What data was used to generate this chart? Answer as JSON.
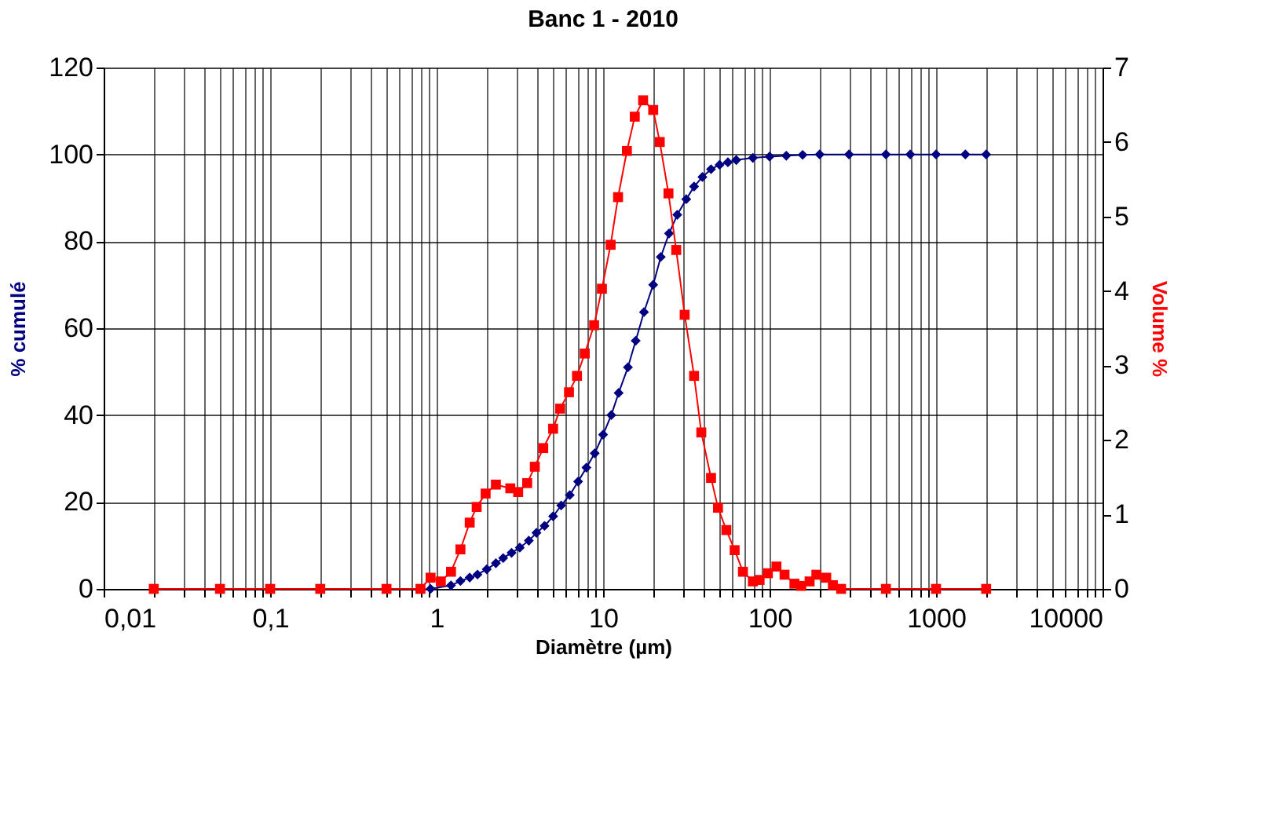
{
  "chart_data": {
    "type": "line",
    "title": "Banc 1 - 2010",
    "xlabel": "Diamètre (µm)",
    "ylabel": "% cumulé",
    "y2label": "Volume %",
    "log": "x",
    "grid": true,
    "xlim": [
      0.01,
      10000
    ],
    "xticks": [
      {
        "value": 0.01,
        "label": "0,01"
      },
      {
        "value": 0.02,
        "label": null
      },
      {
        "value": 0.03,
        "label": null
      },
      {
        "value": 0.04,
        "label": null
      },
      {
        "value": 0.05,
        "label": null
      },
      {
        "value": 0.06,
        "label": null
      },
      {
        "value": 0.07,
        "label": null
      },
      {
        "value": 0.08,
        "label": null
      },
      {
        "value": 0.09,
        "label": null
      },
      {
        "value": 0.1,
        "label": "0,1"
      },
      {
        "value": 0.2,
        "label": null
      },
      {
        "value": 0.3,
        "label": null
      },
      {
        "value": 0.4,
        "label": null
      },
      {
        "value": 0.5,
        "label": null
      },
      {
        "value": 0.6,
        "label": null
      },
      {
        "value": 0.7,
        "label": null
      },
      {
        "value": 0.8,
        "label": null
      },
      {
        "value": 0.9,
        "label": null
      },
      1,
      {
        "value": 2,
        "label": null
      },
      {
        "value": 3,
        "label": null
      },
      {
        "value": 4,
        "label": null
      },
      {
        "value": 5,
        "label": null
      },
      {
        "value": 6,
        "label": null
      },
      {
        "value": 7,
        "label": null
      },
      {
        "value": 8,
        "label": null
      },
      {
        "value": 9,
        "label": null
      },
      10,
      {
        "value": 20,
        "label": null
      },
      {
        "value": 30,
        "label": null
      },
      {
        "value": 40,
        "label": null
      },
      {
        "value": 50,
        "label": null
      },
      {
        "value": 60,
        "label": null
      },
      {
        "value": 70,
        "label": null
      },
      {
        "value": 80,
        "label": null
      },
      {
        "value": 90,
        "label": null
      },
      100,
      {
        "value": 200,
        "label": null
      },
      {
        "value": 300,
        "label": null
      },
      {
        "value": 400,
        "label": null
      },
      {
        "value": 500,
        "label": null
      },
      {
        "value": 600,
        "label": null
      },
      {
        "value": 700,
        "label": null
      },
      {
        "value": 800,
        "label": null
      },
      {
        "value": 900,
        "label": null
      },
      1000,
      {
        "value": 2000,
        "label": null
      },
      {
        "value": 3000,
        "label": null
      },
      {
        "value": 4000,
        "label": null
      },
      {
        "value": 5000,
        "label": null
      },
      {
        "value": 6000,
        "label": null
      },
      {
        "value": 7000,
        "label": null
      },
      {
        "value": 8000,
        "label": null
      },
      {
        "value": 9000,
        "label": null
      },
      10000
    ],
    "ylim": [
      0,
      120
    ],
    "yticks": [
      0,
      20,
      40,
      60,
      80,
      100,
      120
    ],
    "y2lim": [
      0,
      7
    ],
    "y2ticks": [
      0,
      1,
      2,
      3,
      4,
      5,
      6,
      7
    ],
    "series": [
      {
        "color": "#000080",
        "marker": "diamond",
        "axis": "y",
        "x": [
          0.92,
          1.22,
          1.39,
          1.58,
          1.76,
          2.0,
          2.27,
          2.51,
          2.82,
          3.16,
          3.58,
          3.98,
          4.45,
          5.01,
          5.6,
          6.31,
          7.08,
          7.94,
          8.91,
          10,
          11.2,
          12.4,
          14.1,
          15.7,
          17.6,
          20,
          22.2,
          24.9,
          27.9,
          31.6,
          35.2,
          39.5,
          44.5,
          50.1,
          56.2,
          63.1,
          79.4,
          100,
          126,
          158,
          200,
          300,
          500,
          700,
          1000,
          1500,
          2000
        ],
        "values": [
          0,
          0.8,
          1.8,
          2.6,
          3.3,
          4.5,
          5.9,
          7.1,
          8.3,
          9.5,
          11.1,
          12.9,
          14.5,
          16.7,
          19.2,
          21.6,
          24.7,
          27.9,
          31.2,
          35.5,
          40,
          45.1,
          51,
          57.1,
          63.7,
          70,
          76.4,
          81.8,
          86.1,
          89.7,
          92.6,
          94.8,
          96.6,
          97.6,
          98.2,
          98.7,
          99.2,
          99.5,
          99.7,
          99.9,
          100,
          100,
          100,
          100,
          100,
          100,
          100
        ]
      },
      {
        "color": "#ff0000",
        "marker": "square",
        "axis": "y2",
        "x": [
          0.02,
          0.05,
          0.1,
          0.2,
          0.5,
          0.8,
          0.92,
          1.06,
          1.22,
          1.39,
          1.58,
          1.74,
          1.97,
          2.27,
          2.77,
          3.09,
          3.5,
          3.89,
          4.37,
          5.01,
          5.52,
          6.24,
          6.97,
          7.76,
          8.83,
          9.84,
          11.1,
          12.3,
          13.9,
          15.5,
          17.4,
          20,
          21.9,
          24.7,
          27.5,
          30.9,
          35.2,
          38.9,
          44.5,
          49,
          55,
          61.7,
          69.2,
          79.4,
          87.1,
          97.7,
          110,
          123,
          141,
          155,
          174,
          191,
          219,
          240,
          269,
          500,
          1000,
          2000
        ],
        "values": [
          0,
          0,
          0,
          0,
          0,
          0,
          0.15,
          0.1,
          0.23,
          0.53,
          0.89,
          1.1,
          1.28,
          1.4,
          1.35,
          1.3,
          1.42,
          1.64,
          1.89,
          2.15,
          2.42,
          2.64,
          2.86,
          3.16,
          3.54,
          4.03,
          4.62,
          5.26,
          5.88,
          6.34,
          6.56,
          6.43,
          6.0,
          5.31,
          4.55,
          3.68,
          2.86,
          2.1,
          1.49,
          1.09,
          0.79,
          0.52,
          0.23,
          0.1,
          0.12,
          0.21,
          0.3,
          0.19,
          0.07,
          0.04,
          0.1,
          0.19,
          0.15,
          0.05,
          0,
          0,
          0,
          0
        ]
      }
    ]
  }
}
